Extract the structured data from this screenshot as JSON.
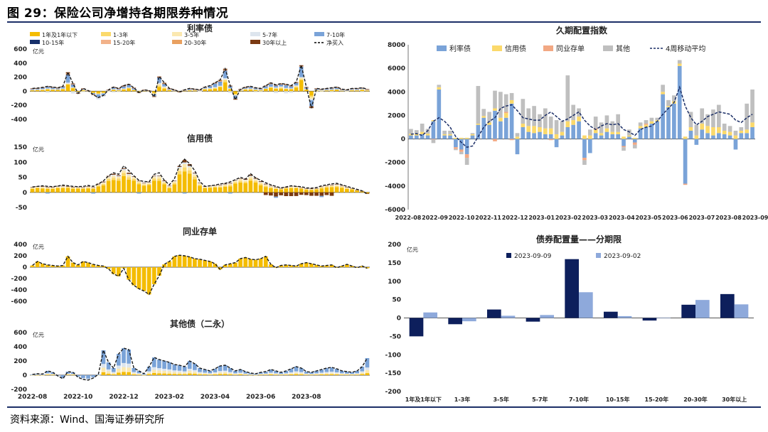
{
  "figure": {
    "title": "图 29：保险公司净增持各期限券种情况",
    "source": "资料来源：Wind、国海证券研究所"
  },
  "chart_data": [
    {
      "id": "rate-bonds",
      "type": "bar",
      "stacked": true,
      "title": "利率债",
      "ylabel": "亿元",
      "ylim": [
        -400,
        600
      ],
      "yticks": [
        -400,
        -200,
        0,
        200,
        400,
        600
      ],
      "legend": [
        {
          "name": "1年及1年以下",
          "color": "#f4bc00"
        },
        {
          "name": "1-3年",
          "color": "#fbd96b"
        },
        {
          "name": "3-5年",
          "color": "#fbe8b0"
        },
        {
          "name": "5-7年",
          "color": "#dde5ee"
        },
        {
          "name": "7-10年",
          "color": "#7aa3d8"
        },
        {
          "name": "10-15年",
          "color": "#17306a"
        },
        {
          "name": "15-20年",
          "color": "#f2b28a"
        },
        {
          "name": "20-30年",
          "color": "#e9a060"
        },
        {
          "name": "30年以上",
          "color": "#7a3a12"
        },
        {
          "name": "净买入",
          "color": "#000000",
          "style": "dashed-line"
        }
      ],
      "net": [
        40,
        45,
        55,
        70,
        60,
        50,
        70,
        270,
        110,
        -30,
        40,
        10,
        -50,
        -90,
        -60,
        20,
        60,
        40,
        80,
        100,
        50,
        -20,
        20,
        10,
        -80,
        210,
        120,
        40,
        20,
        -10,
        20,
        40,
        30,
        20,
        60,
        80,
        120,
        160,
        320,
        80,
        -120,
        30,
        60,
        70,
        50,
        40,
        80,
        120,
        90,
        110,
        100,
        80,
        130,
        370,
        60,
        -240,
        40,
        30,
        40,
        50,
        60,
        30,
        20,
        40,
        40,
        50,
        30
      ]
    },
    {
      "id": "credit-bonds",
      "type": "bar",
      "stacked": true,
      "title": "信用债",
      "ylabel": "亿元",
      "ylim": [
        -50,
        150
      ],
      "yticks": [
        -50,
        0,
        50,
        100,
        150
      ],
      "net": [
        18,
        20,
        22,
        20,
        19,
        21,
        24,
        22,
        20,
        19,
        20,
        23,
        20,
        28,
        38,
        55,
        65,
        60,
        88,
        72,
        55,
        40,
        36,
        35,
        60,
        65,
        40,
        25,
        45,
        90,
        110,
        95,
        72,
        36,
        20,
        22,
        24,
        28,
        30,
        35,
        42,
        50,
        44,
        62,
        48,
        40,
        32,
        25,
        20,
        15,
        18,
        22,
        20,
        19,
        15,
        14,
        16,
        22,
        25,
        28,
        30,
        25,
        20,
        15,
        10,
        5,
        -5
      ]
    },
    {
      "id": "ncd",
      "type": "bar",
      "title": "同业存单",
      "ylabel": "亿元",
      "ylim": [
        -600,
        400
      ],
      "yticks": [
        -600,
        -400,
        -200,
        0,
        200,
        400
      ],
      "values": [
        30,
        100,
        60,
        40,
        30,
        20,
        30,
        190,
        80,
        40,
        100,
        80,
        50,
        30,
        20,
        -30,
        -120,
        -160,
        -20,
        -220,
        -320,
        -380,
        -420,
        -480,
        -300,
        -150,
        50,
        100,
        190,
        210,
        200,
        180,
        150,
        140,
        120,
        100,
        60,
        -40,
        40,
        60,
        80,
        150,
        170,
        140,
        130,
        150,
        190,
        50,
        -10,
        30,
        40,
        30,
        20,
        60,
        80,
        60,
        40,
        20,
        30,
        40,
        -10,
        20,
        50,
        20,
        -10,
        20,
        -20
      ]
    },
    {
      "id": "other-bonds",
      "type": "bar",
      "stacked": true,
      "title": "其他债（二永）",
      "ylabel": "亿元",
      "ylim": [
        -200,
        600
      ],
      "yticks": [
        -200,
        0,
        200,
        400,
        600
      ],
      "xticks": [
        "2022-08",
        "2022-10",
        "2022-12",
        "2023-02",
        "2023-04",
        "2023-06",
        "2023-08"
      ],
      "net": [
        10,
        20,
        15,
        60,
        40,
        -10,
        -50,
        50,
        40,
        -30,
        -60,
        -70,
        -40,
        10,
        350,
        180,
        100,
        300,
        380,
        360,
        100,
        60,
        20,
        120,
        250,
        220,
        200,
        180,
        150,
        140,
        120,
        200,
        160,
        100,
        80,
        60,
        90,
        130,
        140,
        100,
        60,
        80,
        50,
        30,
        20,
        40,
        50,
        80,
        60,
        40,
        60,
        90,
        120,
        100,
        50,
        40,
        60,
        80,
        100,
        110,
        90,
        60,
        50,
        40,
        60,
        120,
        240
      ]
    },
    {
      "id": "duration-index",
      "type": "bar",
      "stacked": true,
      "title": "久期配置指数",
      "ylim": [
        -6000,
        8000
      ],
      "yticks": [
        -6000,
        -4000,
        -2000,
        0,
        2000,
        4000,
        6000,
        8000
      ],
      "xticks": [
        "2022-08",
        "2022-09",
        "2022-10",
        "2022-11",
        "2022-12",
        "2023-01",
        "2023-02",
        "2023-03",
        "2023-04",
        "2023-05",
        "2023-06",
        "2023-07",
        "2023-08",
        "2023-09"
      ],
      "legend": [
        {
          "name": "利率债",
          "color": "#7aa3d8"
        },
        {
          "name": "信用债",
          "color": "#fbd96b"
        },
        {
          "name": "同业存单",
          "color": "#f2a883"
        },
        {
          "name": "其他",
          "color": "#bfbfbf"
        },
        {
          "name": "4周移动平均",
          "color": "#1c2f67",
          "style": "dashed-line"
        }
      ],
      "rate": [
        300,
        300,
        400,
        300,
        1500,
        4200,
        300,
        300,
        -700,
        -900,
        -1300,
        300,
        1200,
        1800,
        1200,
        2400,
        1500,
        1800,
        3000,
        -1300,
        1000,
        600,
        500,
        600,
        400,
        400,
        -700,
        300,
        1000,
        1200,
        1500,
        -1600,
        -1200,
        500,
        300,
        600,
        400,
        400,
        -600,
        200,
        -300,
        900,
        1000,
        1300,
        1500,
        3800,
        2700,
        3000,
        6200,
        -3800,
        700,
        -500,
        800,
        500,
        300,
        500,
        400,
        300,
        -900,
        500,
        500,
        1000
      ],
      "credit": [
        150,
        150,
        200,
        150,
        100,
        200,
        100,
        100,
        100,
        100,
        100,
        100,
        100,
        150,
        200,
        200,
        300,
        400,
        300,
        200,
        300,
        500,
        600,
        400,
        500,
        500,
        400,
        300,
        500,
        400,
        400,
        300,
        300,
        300,
        200,
        300,
        200,
        200,
        200,
        100,
        100,
        200,
        200,
        200,
        100,
        200,
        100,
        200,
        200,
        200,
        300,
        300,
        500,
        600,
        700,
        500,
        300,
        300,
        300,
        200,
        300,
        400
      ],
      "ncd": [
        0,
        0,
        0,
        0,
        -50,
        0,
        0,
        0,
        -150,
        -200,
        -300,
        0,
        0,
        0,
        0,
        -200,
        0,
        100,
        -100,
        0,
        0,
        0,
        0,
        0,
        0,
        -100,
        0,
        0,
        0,
        0,
        0,
        -200,
        0,
        100,
        0,
        0,
        0,
        0,
        -100,
        0,
        -200,
        0,
        100,
        0,
        0,
        0,
        0,
        0,
        0,
        -100,
        0,
        0,
        0,
        0,
        0,
        0,
        0,
        0,
        0,
        0,
        0,
        0
      ],
      "other": [
        400,
        300,
        700,
        400,
        -300,
        200,
        300,
        300,
        -100,
        -200,
        -600,
        100,
        3200,
        600,
        900,
        1500,
        2200,
        1500,
        600,
        300,
        2100,
        1500,
        1700,
        1100,
        1700,
        1000,
        1200,
        900,
        3900,
        1300,
        700,
        -400,
        500,
        1000,
        900,
        1100,
        900,
        1500,
        -300,
        500,
        -300,
        300,
        300,
        300,
        200,
        600,
        500,
        500,
        300,
        0,
        1300,
        900,
        1300,
        1000,
        1500,
        1900,
        600,
        500,
        400,
        300,
        2200,
        2800
      ],
      "ma4": [
        400,
        450,
        300,
        700,
        1500,
        1800,
        1500,
        1000,
        200,
        -300,
        -700,
        -600,
        200,
        1000,
        1500,
        1800,
        2600,
        2800,
        2900,
        2400,
        1800,
        1700,
        1600,
        1600,
        2000,
        2300,
        1900,
        1500,
        1700,
        2000,
        2300,
        1600,
        1100,
        800,
        1100,
        1300,
        1200,
        1300,
        800,
        600,
        300,
        800,
        1000,
        1100,
        1500,
        2100,
        2600,
        3100,
        4400,
        2800,
        1800,
        1200,
        1500,
        1900,
        2100,
        2300,
        2200,
        2100,
        1600,
        1400,
        1800,
        2100
      ]
    },
    {
      "id": "allocation-by-tenor",
      "type": "bar",
      "title": "债券配置量——分期限",
      "ylabel": "亿元",
      "ylim": [
        -200,
        200
      ],
      "yticks": [
        -200,
        -150,
        -100,
        -50,
        0,
        50,
        100,
        150,
        200
      ],
      "categories": [
        "1年及1年以下",
        "1-3年",
        "3-5年",
        "5-7年",
        "7-10年",
        "10-15年",
        "15-20年",
        "20-30年",
        "30年以上"
      ],
      "series": [
        {
          "name": "2023-09-09",
          "color": "#0d1f5c",
          "values": [
            -50,
            -17,
            23,
            -10,
            160,
            17,
            -7,
            36,
            65
          ]
        },
        {
          "name": "2023-09-02",
          "color": "#8ea9db",
          "values": [
            15,
            -9,
            6,
            8,
            70,
            5,
            1,
            49,
            37
          ]
        }
      ]
    }
  ]
}
